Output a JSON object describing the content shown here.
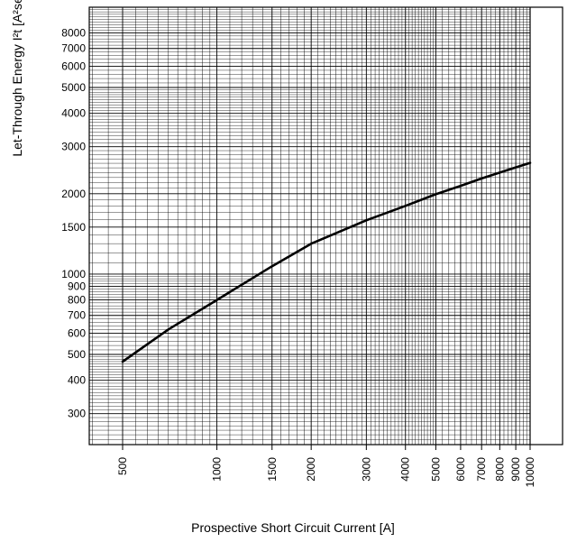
{
  "chart_data": {
    "type": "line",
    "xlabel": "Prospective Short Circuit Current [A]",
    "ylabel": "Let-Through Energy  I²t [A²sec]",
    "xscale": "log",
    "yscale": "log",
    "xlim": [
      400,
      10000
    ],
    "ylim": [
      220,
      11000
    ],
    "x_ticks": [
      500,
      1000,
      1500,
      2000,
      3000,
      4000,
      5000,
      6000,
      7000,
      8000,
      9000,
      10000
    ],
    "x_tick_labels": [
      "500",
      "1000",
      "1500",
      "2000",
      "3000",
      "4000",
      "5000",
      "6000",
      "7000",
      "8000",
      "9000",
      "10000"
    ],
    "y_ticks": [
      300,
      400,
      500,
      600,
      700,
      800,
      900,
      1000,
      1500,
      2000,
      3000,
      4000,
      5000,
      6000,
      7000,
      8000
    ],
    "y_tick_labels": [
      "300",
      "400",
      "500",
      "600",
      "700",
      "800",
      "900",
      "1000",
      "1500",
      "2000",
      "3000",
      "4000",
      "5000",
      "6000",
      "7000",
      "8000"
    ],
    "grid": true,
    "series": [
      {
        "color": "#000000",
        "x": [
          500,
          700,
          1000,
          1500,
          2000,
          3000,
          4000,
          5000,
          6000,
          7000,
          8000,
          9000,
          10000
        ],
        "y": [
          470,
          620,
          800,
          1070,
          1300,
          1590,
          1800,
          1990,
          2140,
          2280,
          2400,
          2510,
          2610
        ]
      }
    ]
  }
}
